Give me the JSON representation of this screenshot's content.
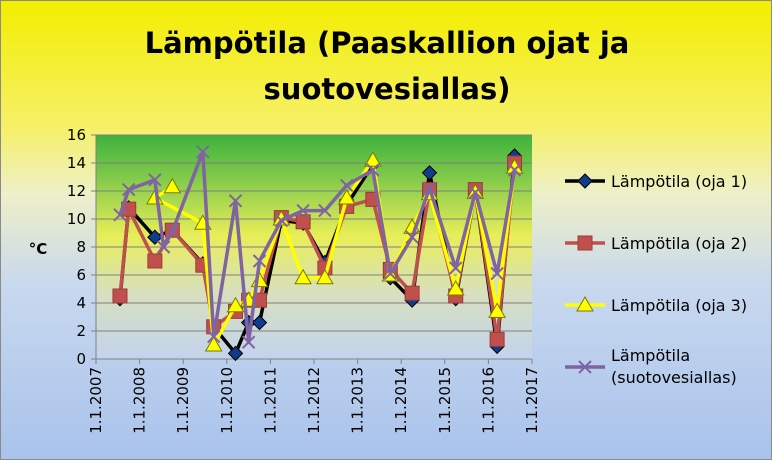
{
  "chart_data": {
    "type": "line",
    "title_line1": "Lämpötila (Paaskallion ojat ja",
    "title_line2": "suotovesiallas)",
    "ylabel": "°C",
    "ylim": [
      0,
      16
    ],
    "yticks": [
      "0",
      "2",
      "4",
      "6",
      "8",
      "10",
      "12",
      "14",
      "16"
    ],
    "xticks": [
      "1.1.2007",
      "1.1.2008",
      "1.1.2009",
      "1.1.2010",
      "1.1.2011",
      "1.1.2012",
      "1.1.2013",
      "1.1.2014",
      "1.1.2015",
      "1.1.2016",
      "1.1.2017"
    ],
    "xlim": [
      2007,
      2017
    ],
    "legend_position": "right",
    "series": [
      {
        "name": "Lämpötila (oja 1)",
        "color": "#000000",
        "marker": "diamond",
        "marker_color": "#0f3d8c",
        "x": [
          2007.55,
          2007.75,
          2008.35,
          2008.75,
          2009.45,
          2009.7,
          2010.2,
          2010.5,
          2010.75,
          2011.25,
          2011.75,
          2012.25,
          2012.75,
          2013.35,
          2013.75,
          2014.25,
          2014.65,
          2015.25,
          2015.7,
          2016.2,
          2016.6
        ],
        "y": [
          4.3,
          10.8,
          8.7,
          9.2,
          6.8,
          2.3,
          0.4,
          2.6,
          2.6,
          9.9,
          9.7,
          6.9,
          11.0,
          13.9,
          5.8,
          4.2,
          13.3,
          4.3,
          12.0,
          0.9,
          14.5
        ]
      },
      {
        "name": "Lämpötila (oja 2)",
        "color": "#c0504d",
        "marker": "square",
        "marker_color": "#c0504d",
        "x": [
          2007.55,
          2007.75,
          2008.35,
          2008.75,
          2009.45,
          2009.7,
          2010.2,
          2010.5,
          2010.75,
          2011.25,
          2011.75,
          2012.25,
          2012.75,
          2013.35,
          2013.75,
          2014.25,
          2014.65,
          2015.25,
          2015.7,
          2016.2,
          2016.6
        ],
        "y": [
          4.5,
          10.7,
          7.0,
          9.2,
          6.7,
          2.3,
          3.4,
          4.2,
          4.2,
          10.1,
          9.8,
          6.5,
          10.9,
          11.4,
          6.4,
          4.7,
          12.1,
          4.5,
          12.1,
          1.4,
          14.0
        ]
      },
      {
        "name": "Lämpötila (oja 3)",
        "color": "#ffff00",
        "marker": "triangle",
        "marker_color": "#ffff00",
        "x": [
          2008.75,
          2008.35,
          2009.45,
          2009.7,
          2010.2,
          2010.5,
          2010.75,
          2011.25,
          2011.75,
          2012.25,
          2012.75,
          2013.35,
          2013.75,
          2014.25,
          2014.65,
          2015.25,
          2015.7,
          2016.2,
          2016.6
        ],
        "y": [
          12.3,
          11.5,
          9.7,
          1.0,
          3.8,
          4.2,
          5.6,
          10.0,
          5.8,
          5.8,
          11.5,
          14.2,
          6.0,
          9.4,
          11.8,
          5.0,
          11.9,
          3.4,
          13.7
        ]
      },
      {
        "name": "Lämpötila (suotovesiallas)",
        "color": "#8064a2",
        "marker": "x",
        "marker_color": "#8064a2",
        "x": [
          2007.55,
          2007.75,
          2008.35,
          2008.55,
          2008.75,
          2009.45,
          2009.7,
          2010.2,
          2010.5,
          2010.75,
          2011.25,
          2011.75,
          2012.25,
          2012.75,
          2013.35,
          2013.75,
          2014.25,
          2014.65,
          2015.25,
          2015.7,
          2016.2,
          2016.6
        ],
        "y": [
          10.3,
          12.1,
          12.8,
          8.0,
          9.1,
          14.8,
          1.6,
          11.3,
          1.2,
          7.0,
          9.9,
          10.6,
          10.6,
          12.4,
          13.5,
          6.1,
          8.7,
          12.2,
          6.5,
          11.9,
          6.1,
          13.5
        ]
      }
    ]
  }
}
